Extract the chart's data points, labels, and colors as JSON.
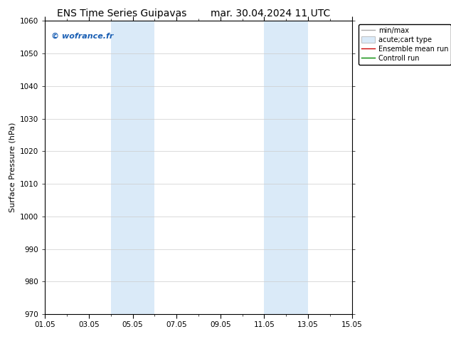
{
  "title_left": "ENS Time Series Guipavas",
  "title_right": "mar. 30.04.2024 11 UTC",
  "ylabel": "Surface Pressure (hPa)",
  "ylim": [
    970,
    1060
  ],
  "yticks": [
    970,
    980,
    990,
    1000,
    1010,
    1020,
    1030,
    1040,
    1050,
    1060
  ],
  "xlim_start": 0,
  "xlim_end": 14,
  "xtick_positions": [
    0,
    2,
    4,
    6,
    8,
    10,
    12,
    14
  ],
  "xtick_labels": [
    "01.05",
    "03.05",
    "05.05",
    "07.05",
    "09.05",
    "11.05",
    "13.05",
    "15.05"
  ],
  "background_color": "#ffffff",
  "plot_bg_color": "#ffffff",
  "shaded_bands": [
    {
      "x_start": 3.0,
      "x_end": 4.0,
      "color": "#daeaf8"
    },
    {
      "x_start": 4.0,
      "x_end": 5.0,
      "color": "#daeaf8"
    },
    {
      "x_start": 10.0,
      "x_end": 11.0,
      "color": "#daeaf8"
    },
    {
      "x_start": 11.0,
      "x_end": 12.0,
      "color": "#daeaf8"
    }
  ],
  "watermark": "© wofrance.fr",
  "watermark_color": "#1a5fb4",
  "legend_entries": [
    {
      "label": "min/max",
      "color": "#aaaaaa",
      "linestyle": "-",
      "linewidth": 1.0
    },
    {
      "label": "acute;cart type",
      "color": "#daeaf8",
      "linestyle": "-",
      "linewidth": 6
    },
    {
      "label": "Ensemble mean run",
      "color": "#cc0000",
      "linestyle": "-",
      "linewidth": 1.0
    },
    {
      "label": "Controll run",
      "color": "#008800",
      "linestyle": "-",
      "linewidth": 1.0
    }
  ],
  "grid_color": "#cccccc",
  "title_fontsize": 10,
  "tick_fontsize": 7.5,
  "ylabel_fontsize": 8,
  "legend_fontsize": 7
}
